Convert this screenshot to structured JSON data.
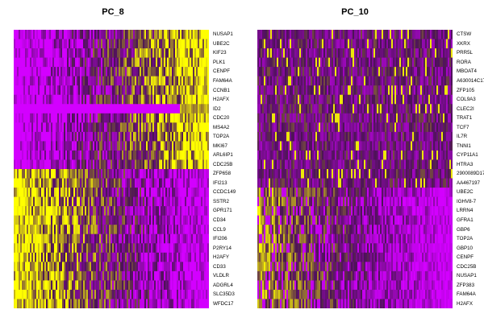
{
  "colors": {
    "low": "#1a0a20",
    "mid": "#4b1355",
    "magenta": "#d300ff",
    "yellow": "#ffff00"
  },
  "chart_data": [
    {
      "type": "heatmap",
      "title": "PC_8",
      "genes": [
        "NUSAP1",
        "UBE2C",
        "KIF23",
        "PLK1",
        "CENPF",
        "FAM64A",
        "CCNB1",
        "H2AFX",
        "ID2",
        "CDC20",
        "MS4A2",
        "TOP2A",
        "MKI67",
        "ARL6IP1",
        "CDC25B",
        "ZFP658",
        "IFI213",
        "CCDC149",
        "SSTR2",
        "GPR171",
        "CD34",
        "CCL9",
        "IFI206",
        "P2RY14",
        "H2AFY",
        "CD33",
        "VLDLR",
        "ADGRL4",
        "SLC35D3",
        "WFDC17"
      ]
    },
    {
      "type": "heatmap",
      "title": "PC_10",
      "genes": [
        "CTSW",
        "XKRX",
        "PRR5L",
        "RORA",
        "MBOAT4",
        "A630014C17",
        "ZFP105",
        "COL9A3",
        "CLEC2I",
        "TRAT1",
        "TCF7",
        "IL7R",
        "TNNI1",
        "CYP11A1",
        "HTRA3",
        "2900089D17",
        "AA467197",
        "UBE2C",
        "IGHV8-7",
        "LRRN4",
        "GFRA1",
        "GBP6",
        "TOP2A",
        "GBP10",
        "CENPF",
        "CDC25B",
        "NUSAP1",
        "ZFP383",
        "FAM64A",
        "H2AFX"
      ]
    }
  ]
}
